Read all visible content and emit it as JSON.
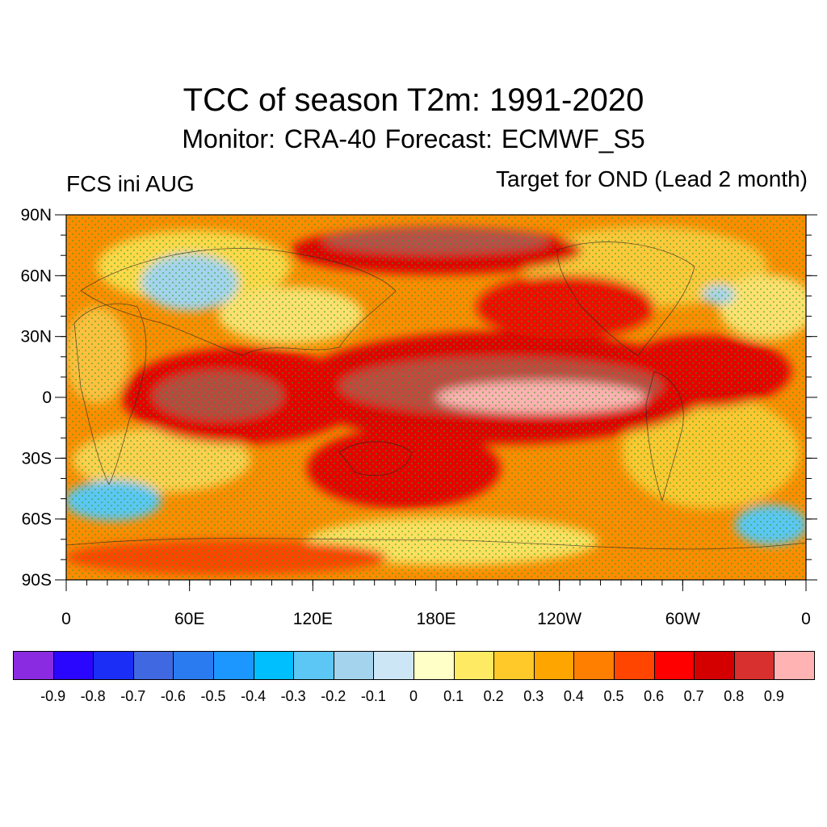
{
  "header": {
    "title": "TCC of season T2m: 1991-2020",
    "subtitle": "Monitor: CRA-40   Forecast: ECMWF_S5",
    "left_label": "FCS ini AUG",
    "right_label": "Target for OND (Lead 2 month)"
  },
  "map": {
    "y_axis_labels": [
      "90N",
      "60N",
      "30N",
      "0",
      "30S",
      "60S",
      "90S"
    ],
    "x_axis_labels": [
      "0",
      "60E",
      "120E",
      "180E",
      "120W",
      "60W",
      "0"
    ],
    "stipple_color": "#22aa22"
  },
  "colorbar": {
    "colors": [
      "#8a2be2",
      "#2b06ff",
      "#1a2ef5",
      "#4068e0",
      "#2b7bf0",
      "#1c97ff",
      "#00bfff",
      "#5cc6f4",
      "#a4d3ee",
      "#cce6f5",
      "#ffffc8",
      "#ffea63",
      "#ffc92a",
      "#ffa500",
      "#ff7f00",
      "#ff4500",
      "#ff0000",
      "#d40000",
      "#d7302e",
      "#ffb3b3"
    ],
    "labels": [
      "-0.9",
      "-0.8",
      "-0.7",
      "-0.6",
      "-0.5",
      "-0.4",
      "-0.3",
      "-0.2",
      "-0.1",
      "0",
      "0.1",
      "0.2",
      "0.3",
      "0.4",
      "0.5",
      "0.6",
      "0.7",
      "0.8",
      "0.9"
    ]
  }
}
